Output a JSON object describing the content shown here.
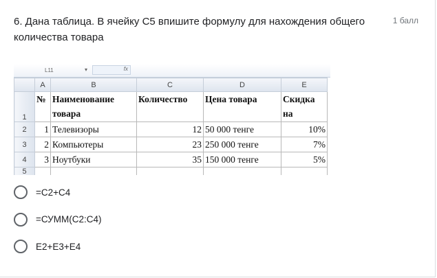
{
  "question": {
    "text": "6. Дана таблица. В ячейку С5 впишите формулу для нахождения общего количества товара",
    "points": "1 балл"
  },
  "sheet": {
    "name_box": "L11",
    "fx": "fx",
    "columns": [
      "A",
      "B",
      "C",
      "D",
      "E"
    ],
    "rows": [
      "1",
      "2",
      "3",
      "4",
      "5"
    ],
    "header": {
      "a": "№",
      "b": "Наименование товара",
      "c": "Количество",
      "d": "Цена товара",
      "e": "Скидка на"
    },
    "data": [
      {
        "a": "1",
        "b": "Телевизоры",
        "c": "12",
        "d": "50 000 тенге",
        "e": "10%"
      },
      {
        "a": "2",
        "b": "Компьютеры",
        "c": "23",
        "d": "250 000 тенге",
        "e": "7%"
      },
      {
        "a": "3",
        "b": "Ноутбуки",
        "c": "35",
        "d": "150 000 тенге",
        "e": "5%"
      }
    ]
  },
  "options": [
    {
      "label": "=C2+C4"
    },
    {
      "label": "=СУММ(C2:C4)"
    },
    {
      "label": "E2+E3+E4"
    }
  ]
}
